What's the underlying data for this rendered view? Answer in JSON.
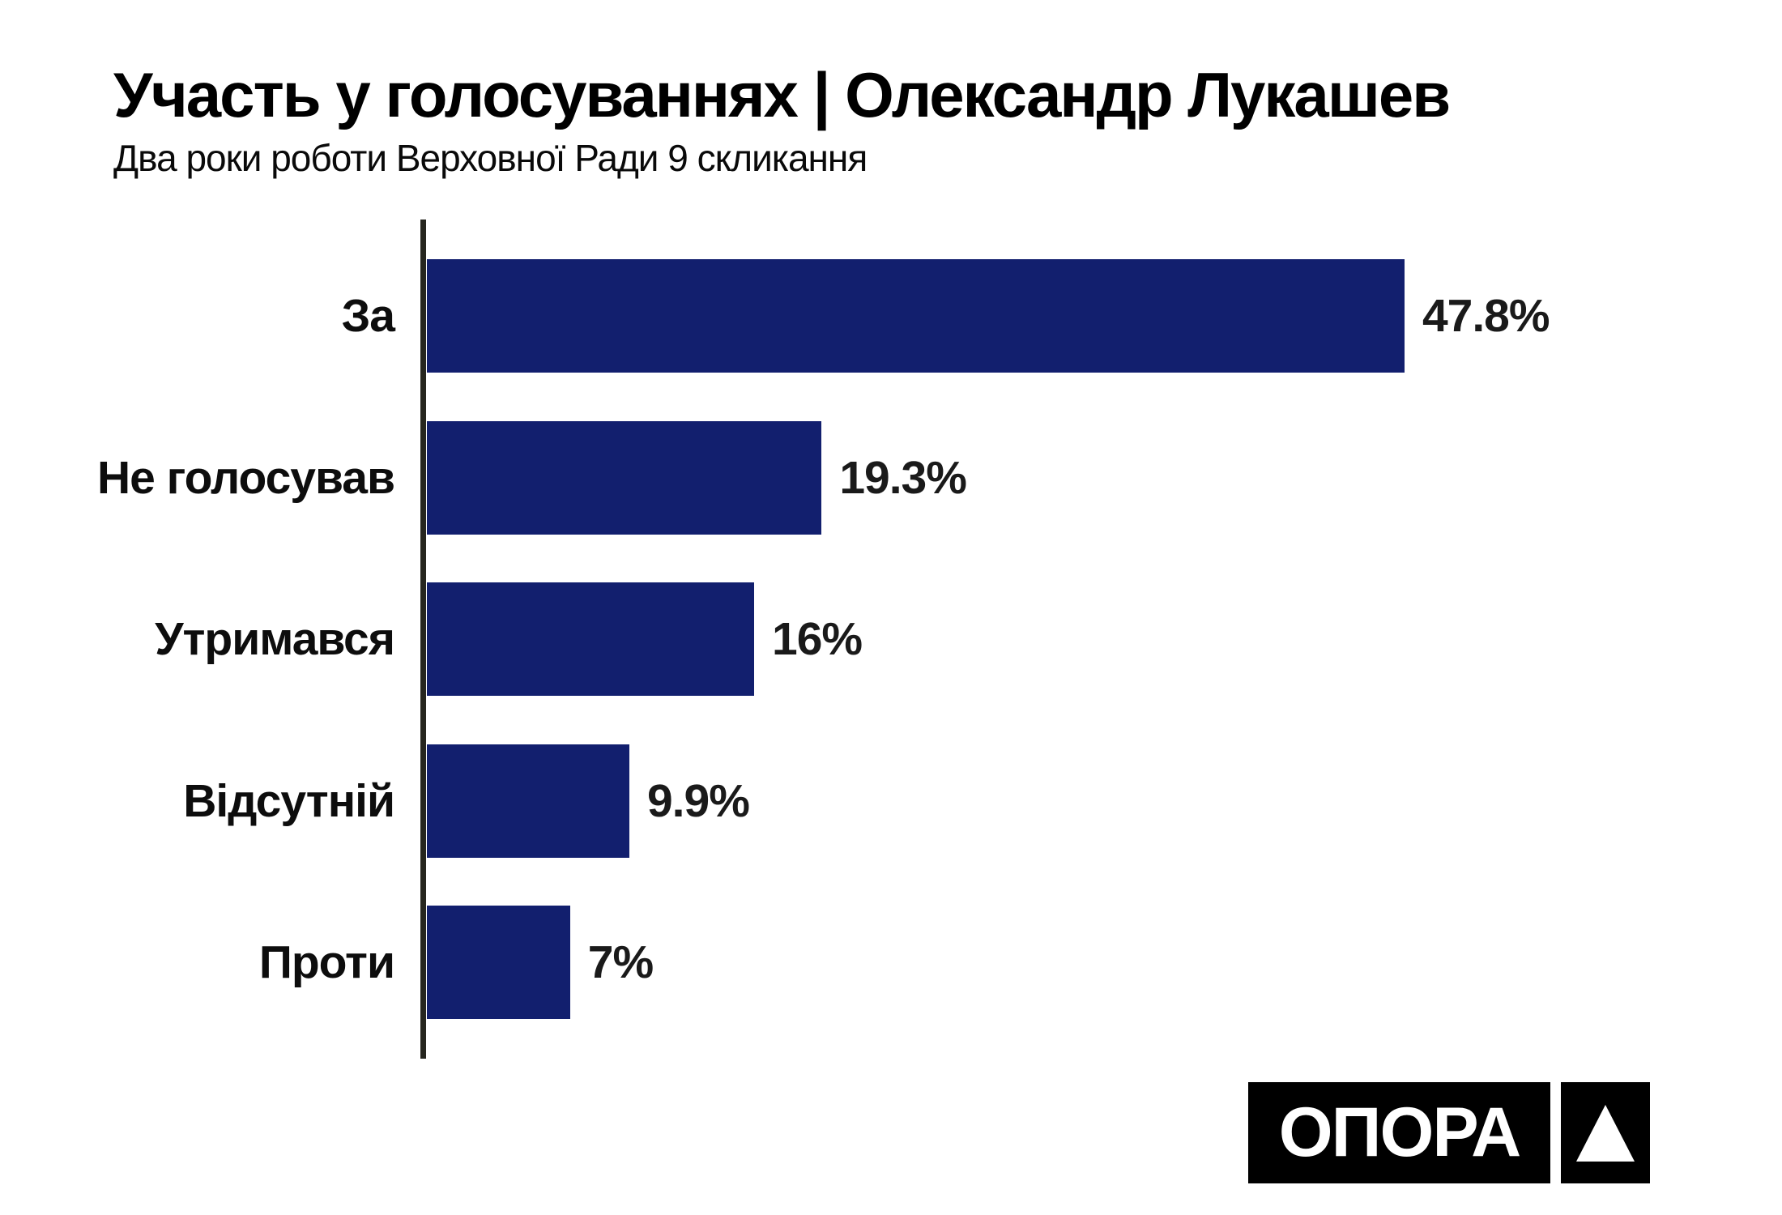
{
  "header": {
    "title": "Участь у голосуваннях | Олександр Лукашев",
    "subtitle": "Два роки роботи Верховної Ради 9 скликання"
  },
  "chart_data": {
    "type": "bar",
    "orientation": "horizontal",
    "title": "Участь у голосуваннях | Олександр Лукашев",
    "subtitle": "Два роки роботи Верховної Ради 9 скликання",
    "categories": [
      "За",
      "Не голосував",
      "Утримався",
      "Відсутній",
      "Проти"
    ],
    "values": [
      47.8,
      19.3,
      16,
      9.9,
      7
    ],
    "value_labels": [
      "47.8%",
      "19.3%",
      "16%",
      "9.9%",
      "7%"
    ],
    "xlim": [
      0,
      50
    ],
    "grid": false,
    "legend": false,
    "bar_color": "#121f6e",
    "axis_color": "#26261f",
    "label_color": "#0d0d0d"
  },
  "logo": {
    "text": "ОПОРА",
    "icon": "triangle-up-icon"
  }
}
